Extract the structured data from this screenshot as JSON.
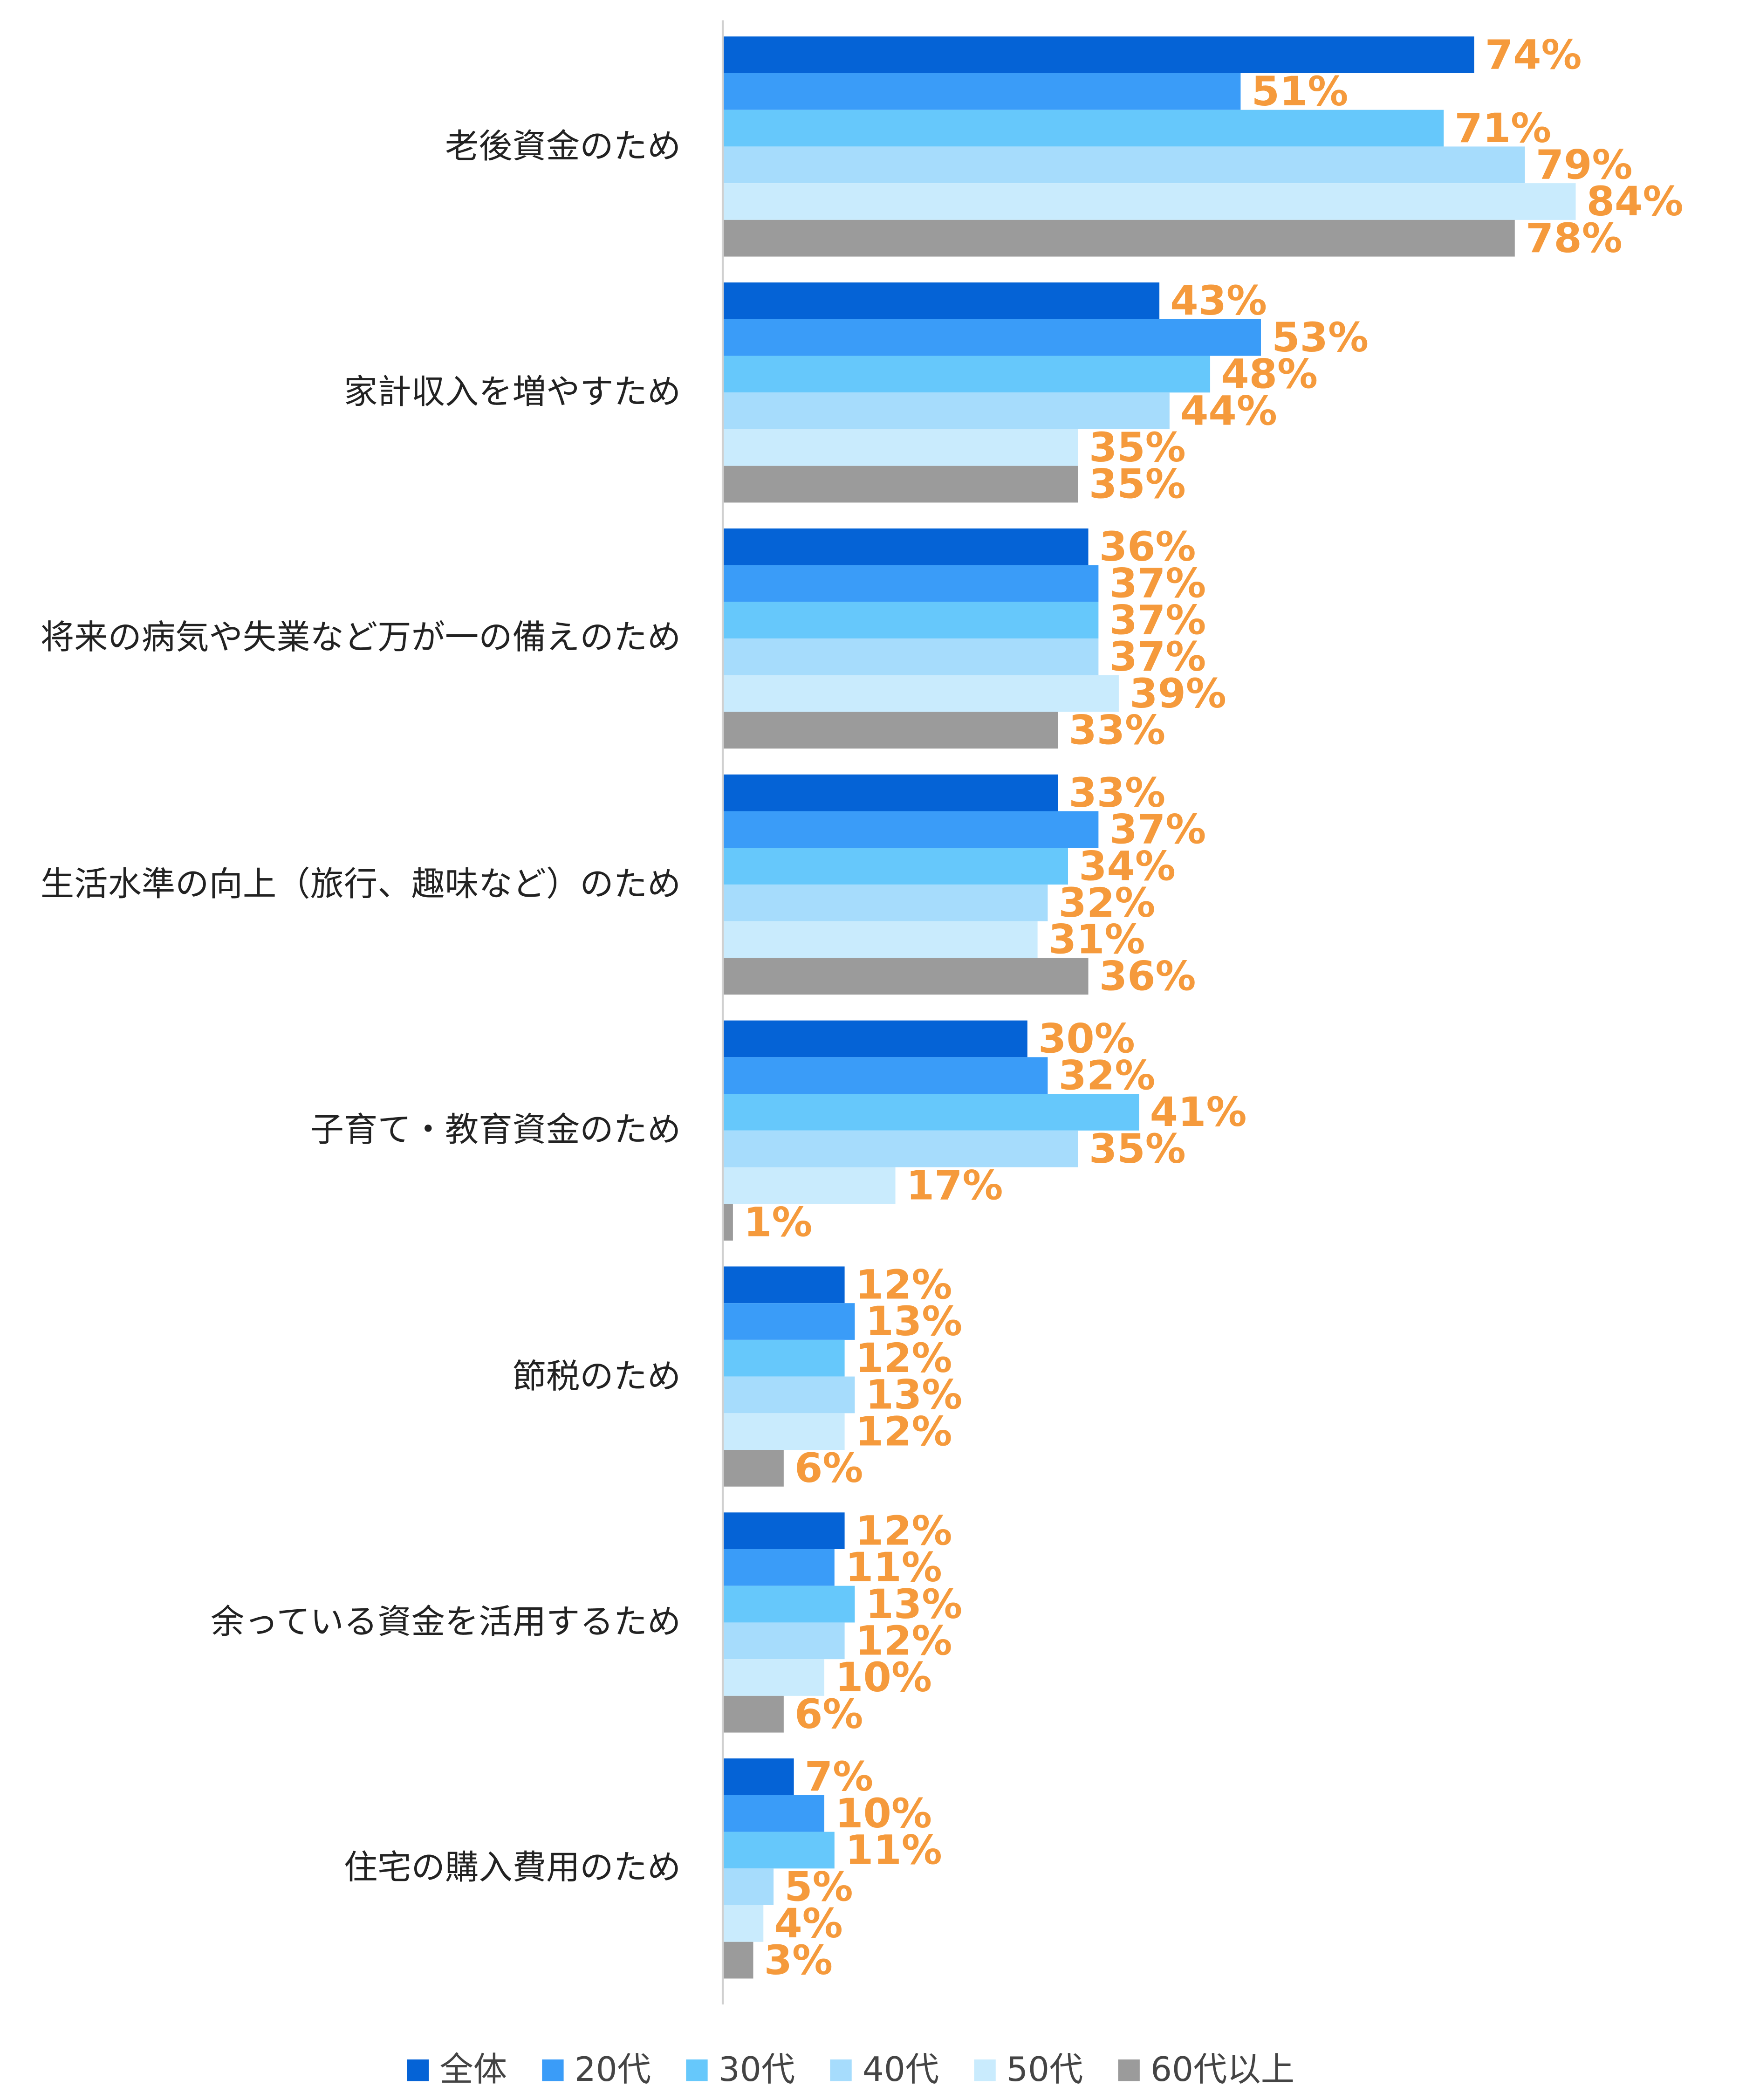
{
  "chart_data": {
    "type": "bar",
    "orientation": "horizontal",
    "categories": [
      "老後資金のため",
      "家計収入を増やすため",
      "将来の病気や失業など万が一の備えのため",
      "生活水準の向上（旅行、趣味など）のため",
      "子育て・教育資金のため",
      "節税のため",
      "余っている資金を活用するため",
      "住宅の購入費用のため"
    ],
    "series": [
      {
        "name": "全体",
        "color": "#0563d6",
        "values": [
          74,
          43,
          36,
          33,
          30,
          12,
          12,
          7
        ],
        "value_labels": [
          "74%",
          "43%",
          "36%",
          "33%",
          "30%",
          "12%",
          "12%",
          "7%"
        ]
      },
      {
        "name": "20代",
        "color": "#3a9cf8",
        "values": [
          51,
          53,
          37,
          37,
          32,
          13,
          11,
          10
        ],
        "value_labels": [
          "51%",
          "53%",
          "37%",
          "37%",
          "32%",
          "13%",
          "11%",
          "10%"
        ]
      },
      {
        "name": "30代",
        "color": "#66c8fb",
        "values": [
          71,
          48,
          37,
          34,
          41,
          12,
          13,
          11
        ],
        "value_labels": [
          "71%",
          "48%",
          "37%",
          "34%",
          "41%",
          "12%",
          "13%",
          "11%"
        ]
      },
      {
        "name": "40代",
        "color": "#a6dcfc",
        "values": [
          79,
          44,
          37,
          32,
          35,
          13,
          12,
          5
        ],
        "value_labels": [
          "79%",
          "44%",
          "37%",
          "32%",
          "35%",
          "13%",
          "12%",
          "5%"
        ]
      },
      {
        "name": "50代",
        "color": "#c9ebfd",
        "values": [
          84,
          35,
          39,
          31,
          17,
          12,
          10,
          4
        ],
        "value_labels": [
          "84%",
          "35%",
          "39%",
          "31%",
          "17%",
          "12%",
          "10%",
          "4%"
        ]
      },
      {
        "name": "60代以上",
        "color": "#9b9b9b",
        "values": [
          78,
          35,
          33,
          36,
          1,
          6,
          6,
          3
        ],
        "value_labels": [
          "78%",
          "35%",
          "33%",
          "36%",
          "1%",
          "6%",
          "6%",
          "3%"
        ]
      }
    ],
    "label_color": "#f59a3c",
    "legend": "bottom"
  }
}
